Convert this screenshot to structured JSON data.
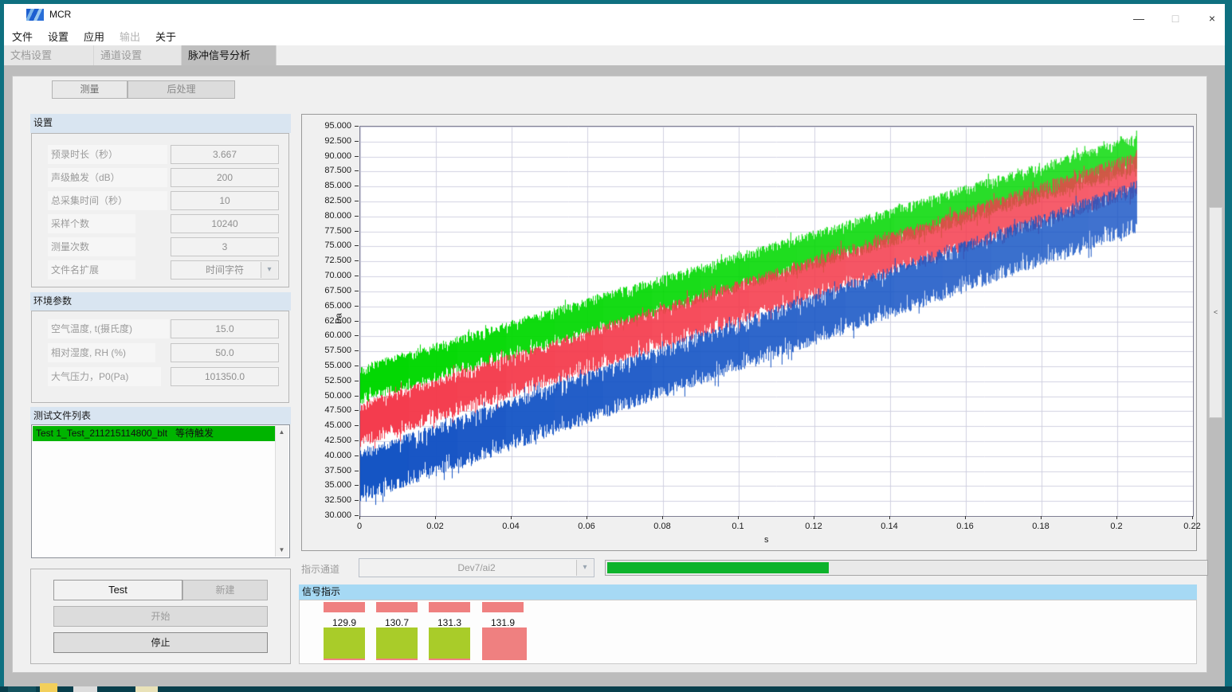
{
  "window": {
    "title": "MCR",
    "controls": {
      "minimize": "—",
      "maximize": "□",
      "close": "×"
    }
  },
  "menu": {
    "items": [
      {
        "label": "文件",
        "enabled": true
      },
      {
        "label": "设置",
        "enabled": true
      },
      {
        "label": "应用",
        "enabled": true
      },
      {
        "label": "输出",
        "enabled": false
      },
      {
        "label": "关于",
        "enabled": true
      }
    ]
  },
  "tabs": [
    {
      "label": "文档设置",
      "active": false
    },
    {
      "label": "通道设置",
      "active": false
    },
    {
      "label": "脉冲信号分析",
      "active": true
    }
  ],
  "subtabs": {
    "measure": "测量",
    "postprocess": "后处理"
  },
  "settings_group": {
    "title": "设置",
    "fields": [
      {
        "label": "预录时长（秒）",
        "value": "3.667"
      },
      {
        "label": "声级触发（dB）",
        "value": "200"
      },
      {
        "label": "总采集时间（秒）",
        "value": "10"
      },
      {
        "label": "采样个数",
        "value": "10240"
      },
      {
        "label": "测量次数",
        "value": "3"
      },
      {
        "label": "文件名扩展",
        "value": "时间字符",
        "type": "dropdown"
      }
    ]
  },
  "env_group": {
    "title": "环境参数",
    "fields": [
      {
        "label": "空气温度, t(摄氏度)",
        "value": "15.0"
      },
      {
        "label": "相对湿度, RH (%)",
        "value": "50.0"
      },
      {
        "label": "大气压力，P0(Pa)",
        "value": "101350.0"
      }
    ]
  },
  "file_list": {
    "title": "测试文件列表",
    "items": [
      {
        "name": "Test 1_Test_211215114800_blt",
        "status": "等待触发",
        "highlight": "#00b400"
      }
    ]
  },
  "controls_panel": {
    "test_name": "Test",
    "new_label": "新建",
    "start_label": "开始",
    "stop_label": "停止"
  },
  "indicator_row": {
    "label": "指示通道",
    "channel": "Dev7/ai2",
    "progress_percent": 37,
    "progress_color": "#0db32b"
  },
  "signal_panel": {
    "title": "信号指示",
    "ok_color": "#a9cc29",
    "alert_color": "#ef8080",
    "indicators": [
      {
        "value": "129.9",
        "state": "ok"
      },
      {
        "value": "130.7",
        "state": "ok"
      },
      {
        "value": "131.3",
        "state": "ok"
      },
      {
        "value": "131.9",
        "state": "alert"
      }
    ]
  },
  "chart_data": {
    "type": "line",
    "title": "",
    "xlabel": "s",
    "ylabel": "Pa",
    "xlim": [
      0,
      0.22
    ],
    "ylim": [
      30,
      95
    ],
    "grid": true,
    "x_ticks": [
      0,
      0.02,
      0.04,
      0.06,
      0.08,
      0.1,
      0.12,
      0.14,
      0.16,
      0.18,
      0.2,
      0.22
    ],
    "y_ticks": [
      95,
      92.5,
      90,
      87.5,
      85,
      82.5,
      80,
      77.5,
      75,
      72.5,
      70,
      67.5,
      65,
      62.5,
      60,
      57.5,
      55,
      52.5,
      50,
      47.5,
      45,
      42.5,
      40,
      37.5,
      35,
      32.5,
      30
    ],
    "description": "Three dense noisy pressure traces rising approximately linearly from t=0 to t=0.205 s",
    "series": [
      {
        "name": "trace-green",
        "color": "#00d800",
        "x_start": 0,
        "x_end": 0.205,
        "y_center_start": 52.0,
        "y_center_end": 90.5,
        "half_band_up": 3.2,
        "half_band_down": 3.4
      },
      {
        "name": "trace-red",
        "color": "#f43b4c",
        "x_start": 0,
        "x_end": 0.205,
        "y_center_start": 45.5,
        "y_center_end": 87.2,
        "half_band_up": 3.6,
        "half_band_down": 4.0
      },
      {
        "name": "trace-blue",
        "color": "#1453c4",
        "x_start": 0,
        "x_end": 0.205,
        "y_center_start": 36.8,
        "y_center_end": 81.8,
        "half_band_up": 4.2,
        "half_band_down": 4.6
      }
    ]
  }
}
